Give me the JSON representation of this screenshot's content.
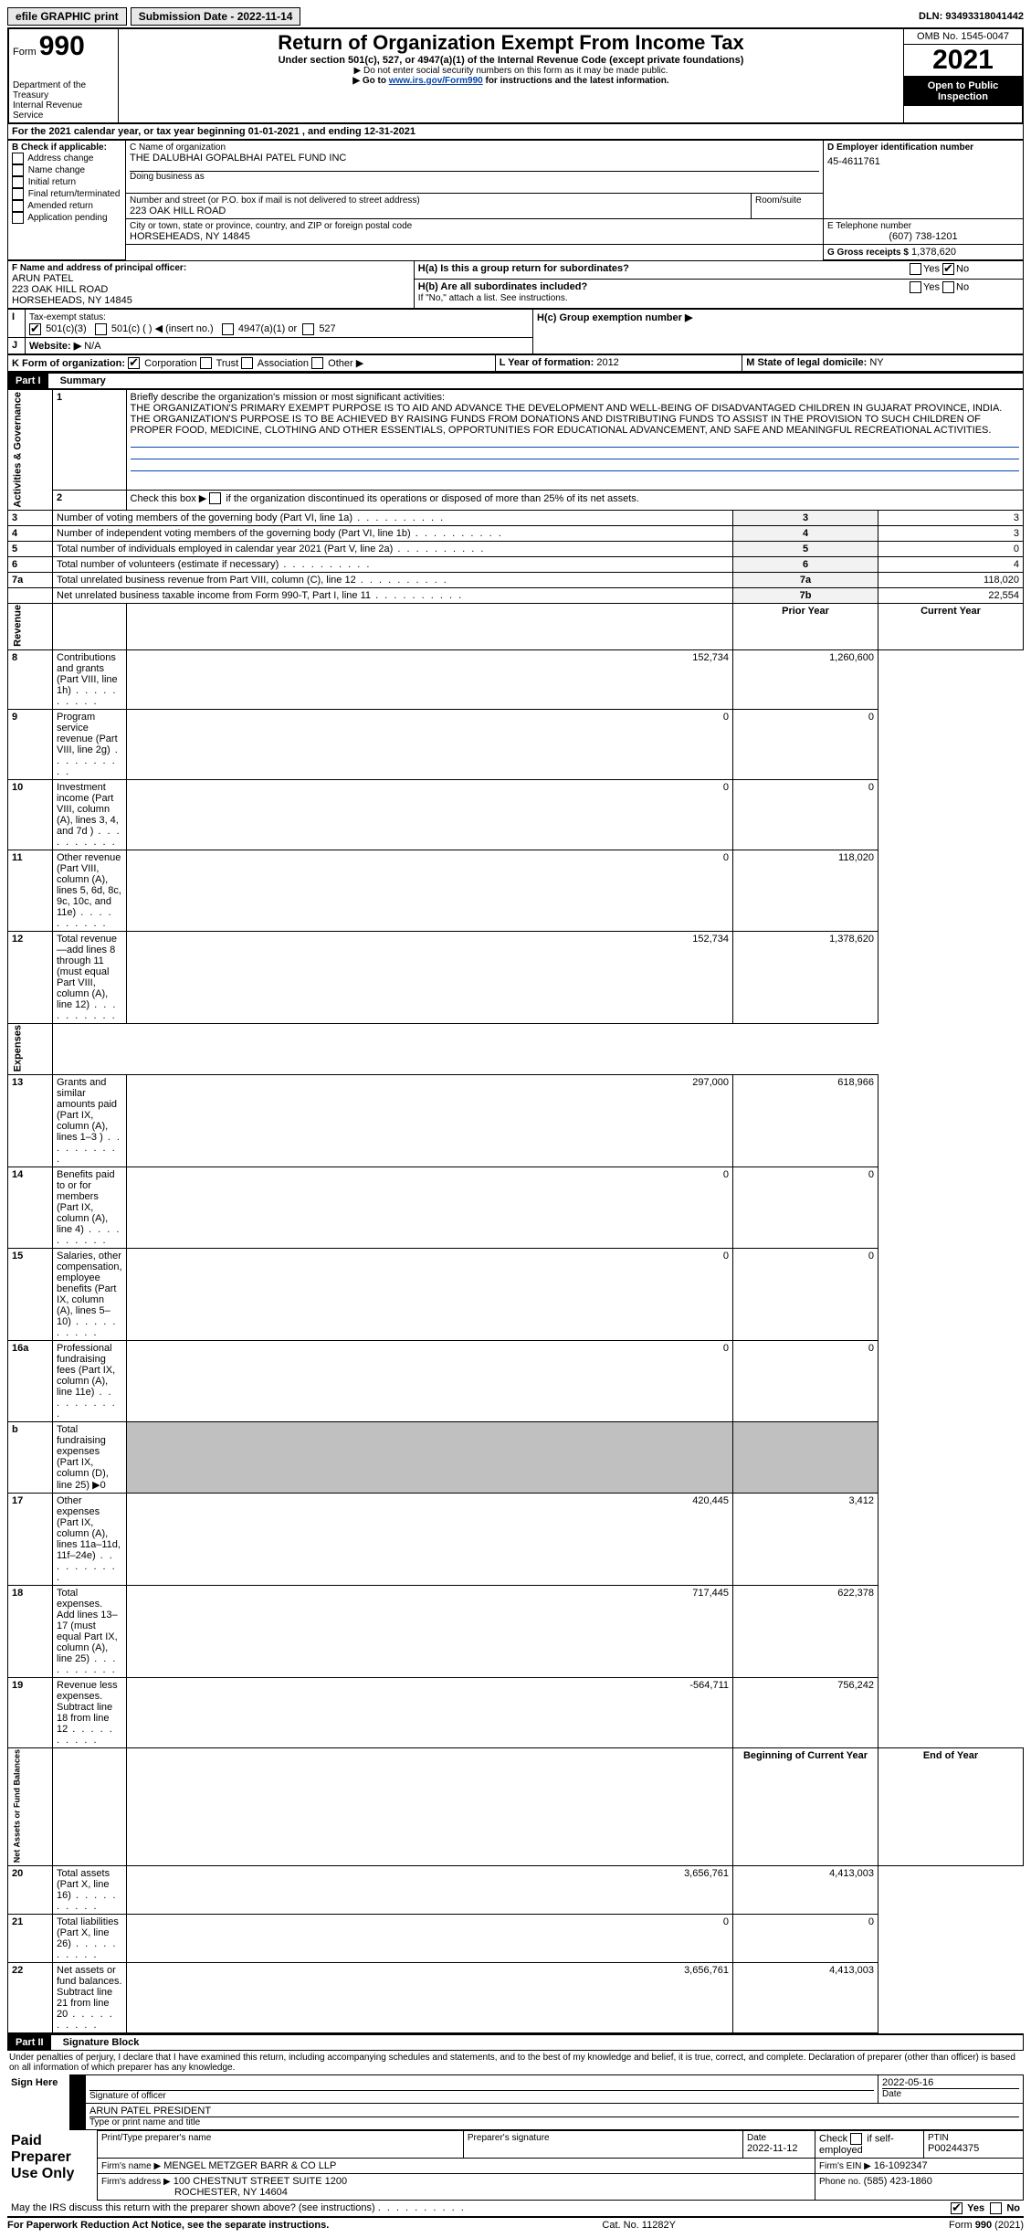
{
  "topbar": {
    "efile": "efile GRAPHIC print",
    "submission_label": "Submission Date - 2022-11-14",
    "dln": "DLN: 93493318041442"
  },
  "header": {
    "form_label": "Form",
    "form_number": "990",
    "dept": "Department of the Treasury",
    "irs": "Internal Revenue Service",
    "title": "Return of Organization Exempt From Income Tax",
    "subtitle": "Under section 501(c), 527, or 4947(a)(1) of the Internal Revenue Code (except private foundations)",
    "note1": "▶ Do not enter social security numbers on this form as it may be made public.",
    "note2_pre": "▶ Go to ",
    "note2_link": "www.irs.gov/Form990",
    "note2_post": " for instructions and the latest information.",
    "omb": "OMB No. 1545-0047",
    "year": "2021",
    "open": "Open to Public Inspection"
  },
  "lineA": "For the 2021 calendar year, or tax year beginning 01-01-2021   , and ending 12-31-2021",
  "boxB": {
    "label": "B Check if applicable:",
    "items": [
      "Address change",
      "Name change",
      "Initial return",
      "Final return/terminated",
      "Amended return",
      "Application pending"
    ]
  },
  "boxC": {
    "name_label": "C Name of organization",
    "name": "THE DALUBHAI GOPALBHAI PATEL FUND INC",
    "dba_label": "Doing business as",
    "street_label": "Number and street (or P.O. box if mail is not delivered to street address)",
    "street": "223 OAK HILL ROAD",
    "room_label": "Room/suite",
    "city_label": "City or town, state or province, country, and ZIP or foreign postal code",
    "city": "HORSEHEADS, NY  14845"
  },
  "boxD": {
    "label": "D Employer identification number",
    "value": "45-4611761"
  },
  "boxE": {
    "label": "E Telephone number",
    "value": "(607) 738-1201"
  },
  "boxG": {
    "label": "G Gross receipts $",
    "value": "1,378,620"
  },
  "boxF": {
    "label": "F  Name and address of principal officer:",
    "name": "ARUN PATEL",
    "street": "223 OAK HILL ROAD",
    "city": "HORSEHEADS, NY  14845"
  },
  "boxH": {
    "a_label": "H(a)  Is this a group return for subordinates?",
    "b_label": "H(b)  Are all subordinates included?",
    "b_note": "If \"No,\" attach a list. See instructions.",
    "c_label": "H(c)  Group exemption number ▶",
    "yes": "Yes",
    "no": "No"
  },
  "lineI": {
    "label": "Tax-exempt status:",
    "opts": [
      "501(c)(3)",
      "501(c) (  ) ◀ (insert no.)",
      "4947(a)(1) or",
      "527"
    ]
  },
  "lineJ": {
    "label": "Website: ▶",
    "value": "N/A"
  },
  "lineK": {
    "label": "K Form of organization:",
    "opts": [
      "Corporation",
      "Trust",
      "Association",
      "Other ▶"
    ]
  },
  "lineL": {
    "label": "L Year of formation:",
    "value": "2012"
  },
  "lineM": {
    "label": "M State of legal domicile:",
    "value": "NY"
  },
  "part1": {
    "label": "Part I",
    "title": "Summary",
    "side1": "Activities & Governance",
    "side2": "Revenue",
    "side3": "Expenses",
    "side4": "Net Assets or Fund Balances",
    "q1": "Briefly describe the organization's mission or most significant activities:",
    "mission": "THE ORGANIZATION'S PRIMARY EXEMPT PURPOSE IS TO AID AND ADVANCE THE DEVELOPMENT AND WELL-BEING OF DISADVANTAGED CHILDREN IN GUJARAT PROVINCE, INDIA. THE ORGANIZATION'S PURPOSE IS TO BE ACHIEVED BY RAISING FUNDS FROM DONATIONS AND DISTRIBUTING FUNDS TO ASSIST IN THE PROVISION TO SUCH CHILDREN OF PROPER FOOD, MEDICINE, CLOTHING AND OTHER ESSENTIALS, OPPORTUNITIES FOR EDUCATIONAL ADVANCEMENT, AND SAFE AND MEANINGFUL RECREATIONAL ACTIVITIES.",
    "q2": "Check this box ▶    if the organization discontinued its operations or disposed of more than 25% of its net assets.",
    "rows_gov": [
      {
        "n": "3",
        "t": "Number of voting members of the governing body (Part VI, line 1a)",
        "b": "3",
        "v": "3"
      },
      {
        "n": "4",
        "t": "Number of independent voting members of the governing body (Part VI, line 1b)",
        "b": "4",
        "v": "3"
      },
      {
        "n": "5",
        "t": "Total number of individuals employed in calendar year 2021 (Part V, line 2a)",
        "b": "5",
        "v": "0"
      },
      {
        "n": "6",
        "t": "Total number of volunteers (estimate if necessary)",
        "b": "6",
        "v": "4"
      },
      {
        "n": "7a",
        "t": "Total unrelated business revenue from Part VIII, column (C), line 12",
        "b": "7a",
        "v": "118,020"
      },
      {
        "n": "",
        "t": "Net unrelated business taxable income from Form 990-T, Part I, line 11",
        "b": "7b",
        "v": "22,554"
      }
    ],
    "cols": {
      "prior": "Prior Year",
      "current": "Current Year",
      "boy": "Beginning of Current Year",
      "eoy": "End of Year"
    },
    "rows_rev": [
      {
        "n": "8",
        "t": "Contributions and grants (Part VIII, line 1h)",
        "p": "152,734",
        "c": "1,260,600"
      },
      {
        "n": "9",
        "t": "Program service revenue (Part VIII, line 2g)",
        "p": "0",
        "c": "0"
      },
      {
        "n": "10",
        "t": "Investment income (Part VIII, column (A), lines 3, 4, and 7d )",
        "p": "0",
        "c": "0"
      },
      {
        "n": "11",
        "t": "Other revenue (Part VIII, column (A), lines 5, 6d, 8c, 9c, 10c, and 11e)",
        "p": "0",
        "c": "118,020"
      },
      {
        "n": "12",
        "t": "Total revenue—add lines 8 through 11 (must equal Part VIII, column (A), line 12)",
        "p": "152,734",
        "c": "1,378,620"
      }
    ],
    "rows_exp": [
      {
        "n": "13",
        "t": "Grants and similar amounts paid (Part IX, column (A), lines 1–3 )",
        "p": "297,000",
        "c": "618,966"
      },
      {
        "n": "14",
        "t": "Benefits paid to or for members (Part IX, column (A), line 4)",
        "p": "0",
        "c": "0"
      },
      {
        "n": "15",
        "t": "Salaries, other compensation, employee benefits (Part IX, column (A), lines 5–10)",
        "p": "0",
        "c": "0"
      },
      {
        "n": "16a",
        "t": "Professional fundraising fees (Part IX, column (A), line 11e)",
        "p": "0",
        "c": "0"
      },
      {
        "n": "b",
        "t": "Total fundraising expenses (Part IX, column (D), line 25) ▶0",
        "p": "gray",
        "c": "gray"
      },
      {
        "n": "17",
        "t": "Other expenses (Part IX, column (A), lines 11a–11d, 11f–24e)",
        "p": "420,445",
        "c": "3,412"
      },
      {
        "n": "18",
        "t": "Total expenses. Add lines 13–17 (must equal Part IX, column (A), line 25)",
        "p": "717,445",
        "c": "622,378"
      },
      {
        "n": "19",
        "t": "Revenue less expenses. Subtract line 18 from line 12",
        "p": "-564,711",
        "c": "756,242"
      }
    ],
    "rows_net": [
      {
        "n": "20",
        "t": "Total assets (Part X, line 16)",
        "p": "3,656,761",
        "c": "4,413,003"
      },
      {
        "n": "21",
        "t": "Total liabilities (Part X, line 26)",
        "p": "0",
        "c": "0"
      },
      {
        "n": "22",
        "t": "Net assets or fund balances. Subtract line 21 from line 20",
        "p": "3,656,761",
        "c": "4,413,003"
      }
    ]
  },
  "part2": {
    "label": "Part II",
    "title": "Signature Block",
    "decl": "Under penalties of perjury, I declare that I have examined this return, including accompanying schedules and statements, and to the best of my knowledge and belief, it is true, correct, and complete. Declaration of preparer (other than officer) is based on all information of which preparer has any knowledge.",
    "sign_here": "Sign Here",
    "sig_officer": "Signature of officer",
    "date": "Date",
    "date_val": "2022-05-16",
    "name_title": "ARUN PATEL  PRESIDENT",
    "name_label": "Type or print name and title",
    "paid": "Paid Preparer Use Only",
    "prep_name_label": "Print/Type preparer's name",
    "prep_sig_label": "Preparer's signature",
    "prep_date_label": "Date",
    "prep_date": "2022-11-12",
    "check_self": "Check        if self-employed",
    "ptin_label": "PTIN",
    "ptin": "P00244375",
    "firm_name_label": "Firm's name    ▶",
    "firm_name": "MENGEL METZGER BARR & CO LLP",
    "firm_ein_label": "Firm's EIN ▶",
    "firm_ein": "16-1092347",
    "firm_addr_label": "Firm's address ▶",
    "firm_addr": "100 CHESTNUT STREET SUITE 1200",
    "firm_city": "ROCHESTER, NY  14604",
    "phone_label": "Phone no.",
    "phone": "(585) 423-1860",
    "may_irs": "May the IRS discuss this return with the preparer shown above? (see instructions)",
    "yes": "Yes",
    "no": "No"
  },
  "footer": {
    "left": "For Paperwork Reduction Act Notice, see the separate instructions.",
    "mid": "Cat. No. 11282Y",
    "right": "Form 990 (2021)"
  }
}
